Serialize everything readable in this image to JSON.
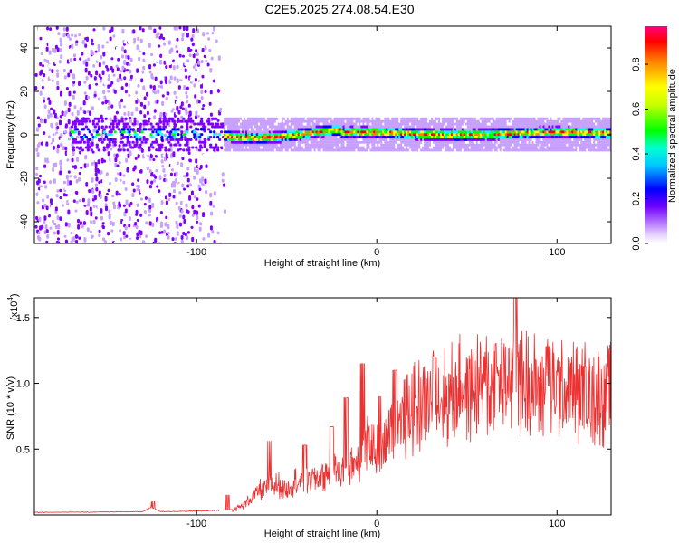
{
  "chart_data": [
    {
      "type": "heatmap",
      "title": "C2E5.2025.274.08.54.E30",
      "xlabel": "Height of straight line (km)",
      "ylabel": "Frequency (Hz)",
      "xlim": [
        -190,
        130
      ],
      "ylim": [
        -50,
        50
      ],
      "xticks": [
        -100,
        0,
        100
      ],
      "xtick_labels": [
        "-100",
        "0",
        "100"
      ],
      "yticks": [
        -40,
        -20,
        0,
        20,
        40
      ],
      "ytick_labels": [
        "-40",
        "-20",
        "0",
        "20",
        "40"
      ],
      "colorbar": {
        "label": "Normalized spectral amplitude",
        "range": [
          0,
          0.97
        ],
        "ticks": [
          0.0,
          0.2,
          0.4,
          0.6,
          0.8
        ],
        "tick_labels": [
          "0.0",
          "0.2",
          "0.4",
          "0.6",
          "0.8"
        ],
        "colors": [
          "#ffffff",
          "#c8a0ff",
          "#8000ff",
          "#0000ff",
          "#00ffff",
          "#00ff00",
          "#ffff00",
          "#ff8000",
          "#ff0000",
          "#ff0080"
        ]
      },
      "regions": [
        {
          "description": "scattered broadband noise",
          "x_range": [
            -190,
            -85
          ],
          "freq_range": [
            -50,
            50
          ],
          "amplitude_range": [
            0.02,
            0.2
          ]
        },
        {
          "description": "narrow band near 0 Hz",
          "x_range": [
            -85,
            130
          ],
          "freq_range": [
            -4,
            5
          ],
          "amplitude_range": [
            0.2,
            0.95
          ]
        }
      ]
    },
    {
      "type": "line",
      "xlabel": "Height of straight line (km)",
      "ylabel": "SNR (10 * v/v)",
      "scale_label": "(x10",
      "scale_exponent": "4",
      "scale_suffix": ")",
      "xlim": [
        -190,
        130
      ],
      "ylim": [
        0,
        16500
      ],
      "xticks": [
        -100,
        0,
        100
      ],
      "xtick_labels": [
        "-100",
        "0",
        "100"
      ],
      "yticks": [
        5000,
        10000,
        15000
      ],
      "ytick_labels": [
        "0.5",
        "1.0",
        "1.5"
      ],
      "line_color": "#ee3030",
      "series": [
        {
          "name": "SNR",
          "x": [
            -190,
            -180,
            -170,
            -160,
            -150,
            -140,
            -130,
            -125,
            -120,
            -110,
            -100,
            -95,
            -90,
            -85,
            -80,
            -75,
            -70,
            -65,
            -60,
            -55,
            -50,
            -45,
            -40,
            -35,
            -30,
            -25,
            -20,
            -15,
            -10,
            -5,
            0,
            5,
            10,
            15,
            20,
            25,
            30,
            35,
            40,
            45,
            50,
            55,
            60,
            65,
            70,
            75,
            80,
            85,
            90,
            95,
            100,
            105,
            110,
            115,
            120,
            125,
            130
          ],
          "values": [
            200,
            200,
            220,
            210,
            230,
            240,
            250,
            600,
            260,
            270,
            300,
            320,
            350,
            380,
            420,
            650,
            1200,
            1900,
            2200,
            2300,
            2000,
            2600,
            2400,
            2800,
            3000,
            3300,
            3300,
            3600,
            4300,
            5300,
            4700,
            5800,
            6700,
            7200,
            7900,
            8500,
            8700,
            8800,
            9100,
            9500,
            9600,
            9900,
            10100,
            9800,
            10100,
            10600,
            10200,
            9800,
            9600,
            9500,
            9400,
            9500,
            9400,
            9200,
            9100,
            9200,
            9100
          ],
          "envelope_peaks": [
            [
              -124,
              1000
            ],
            [
              -83,
              1500
            ],
            [
              -60,
              5600
            ],
            [
              -40,
              5300
            ],
            [
              -25,
              6700
            ],
            [
              -17,
              8900
            ],
            [
              -8,
              11500
            ],
            [
              2,
              9000
            ],
            [
              10,
              11000
            ],
            [
              32,
              12000
            ],
            [
              65,
              13000
            ],
            [
              77,
              16500
            ],
            [
              95,
              12800
            ],
            [
              115,
              11300
            ]
          ]
        }
      ]
    }
  ]
}
